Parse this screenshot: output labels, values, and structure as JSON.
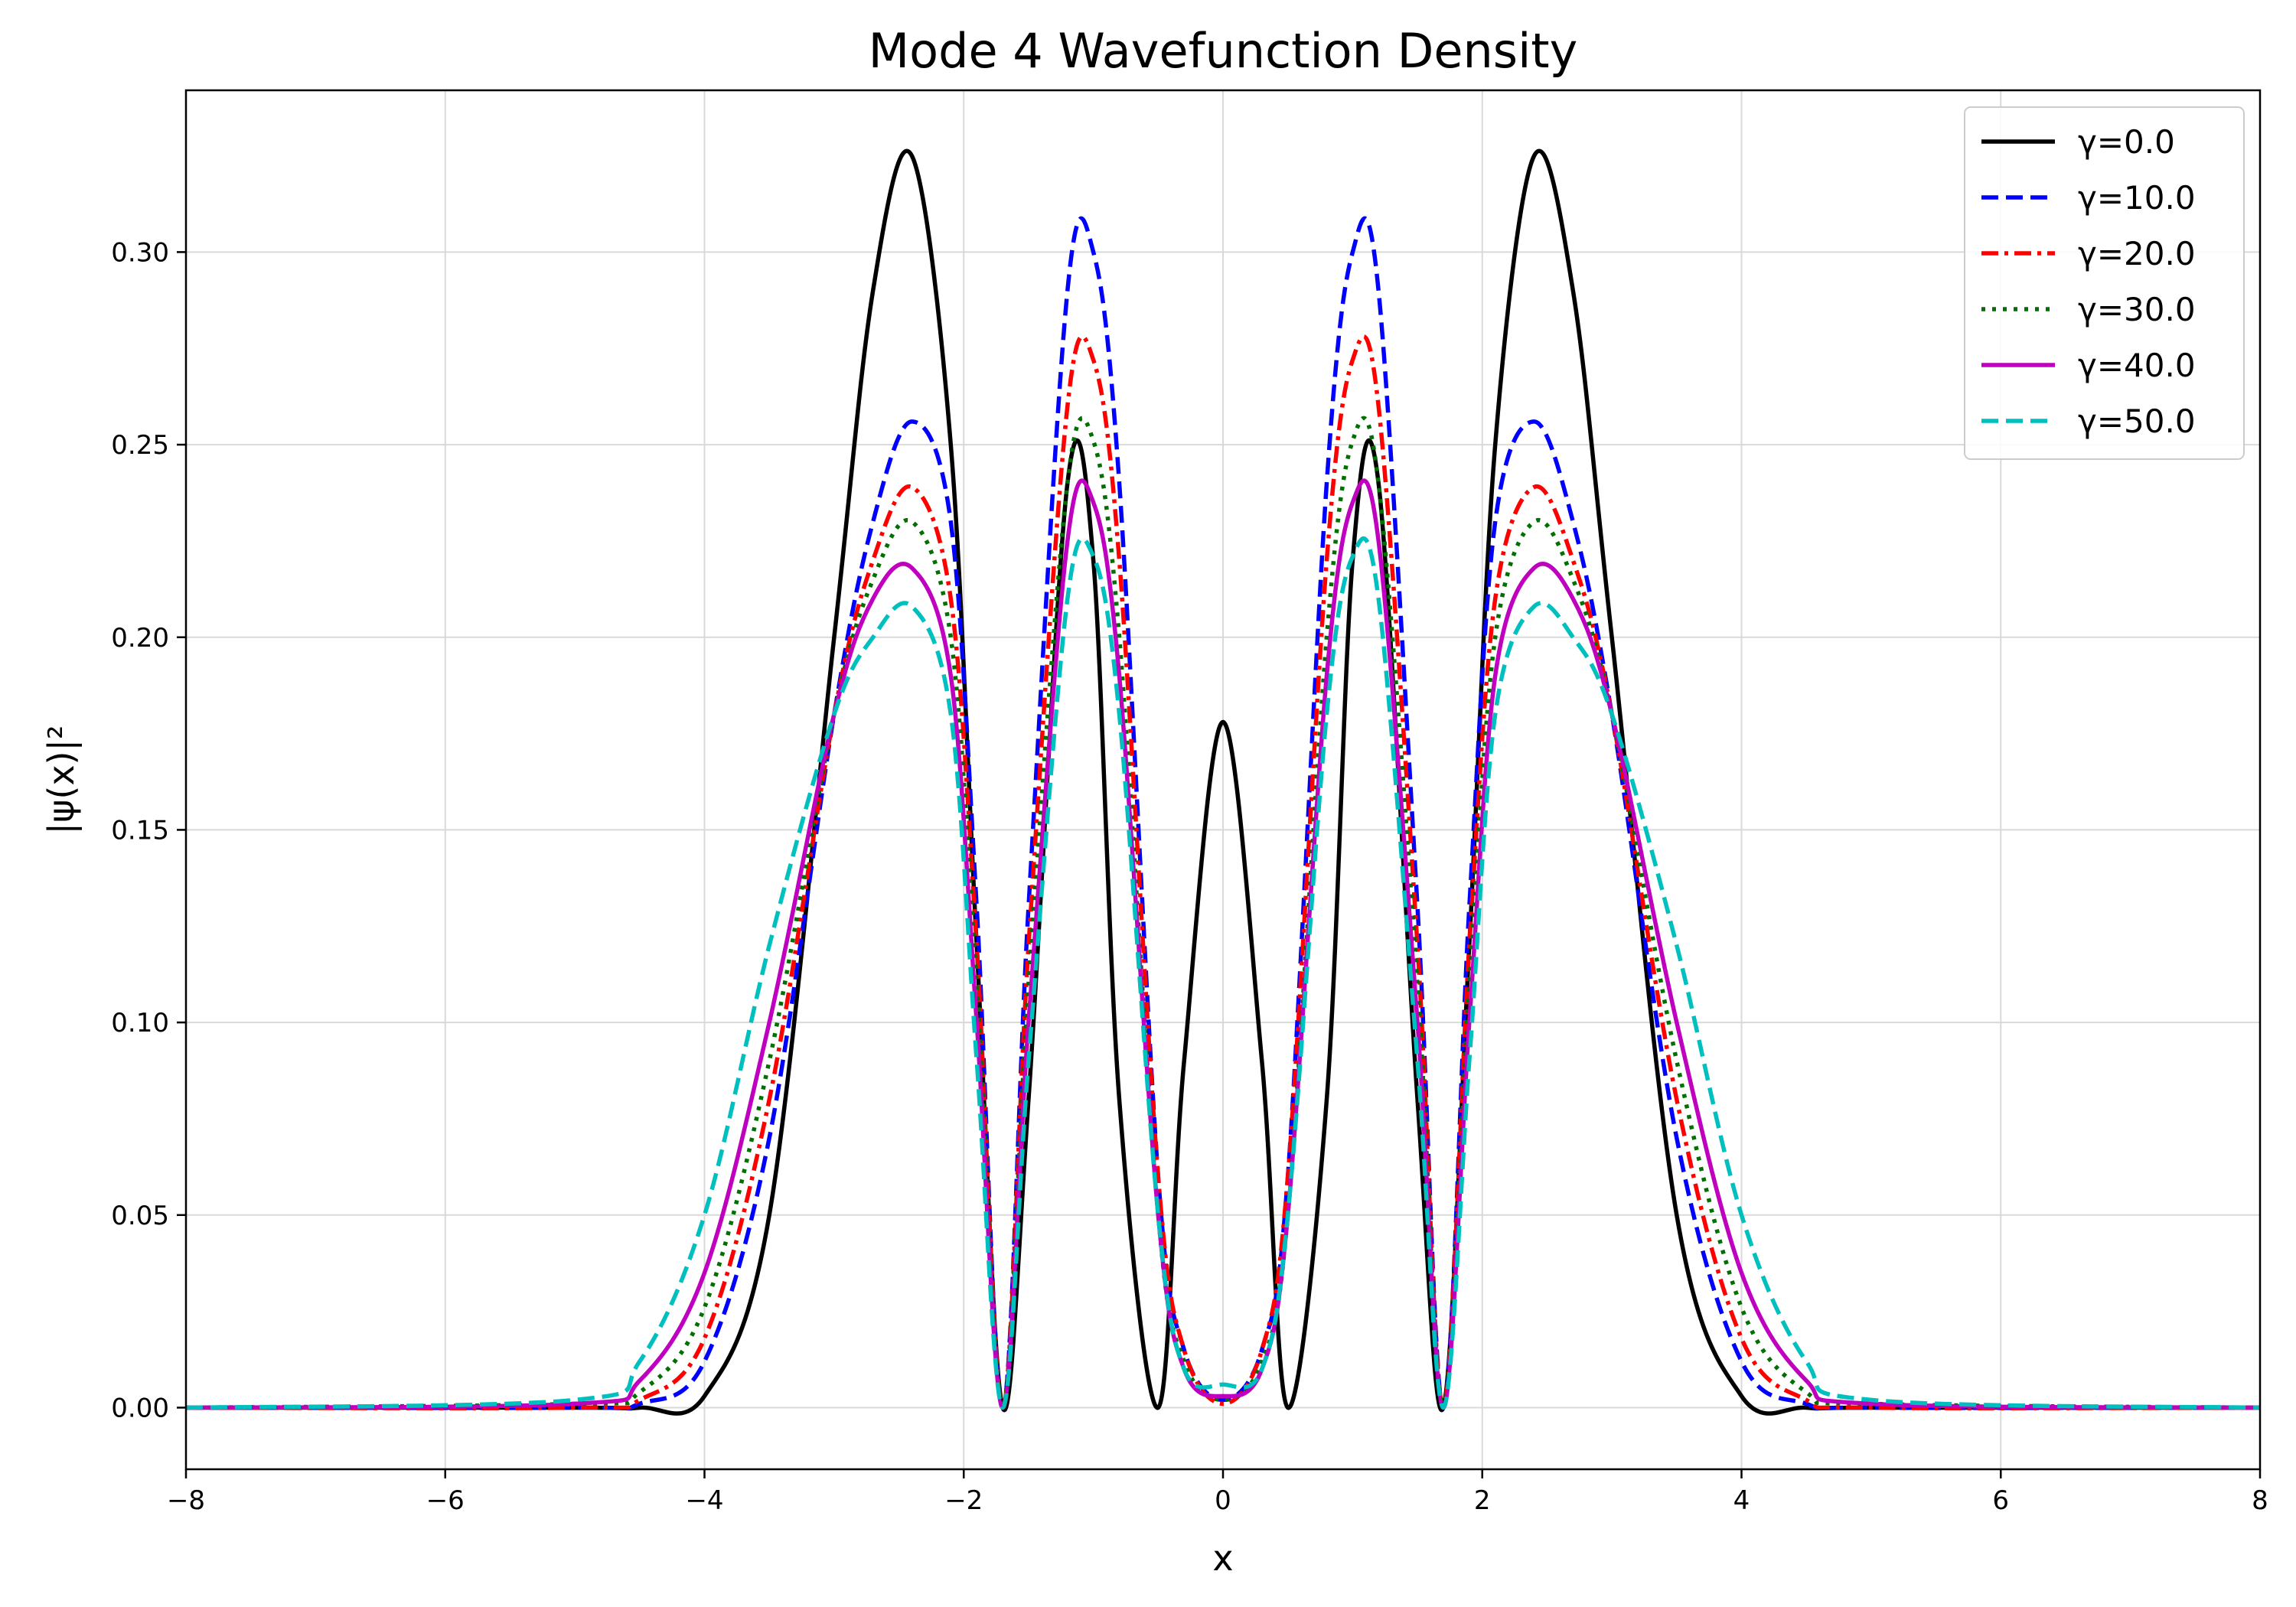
{
  "chart_data": {
    "type": "line",
    "title": "Mode 4 Wavefunction Density",
    "xlabel": "x",
    "ylabel": "|ψ(x)|²",
    "xlim": [
      -8,
      8
    ],
    "ylim": [
      -0.016,
      0.342
    ],
    "xticks": [
      -8,
      -6,
      -4,
      -2,
      0,
      2,
      4,
      6,
      8
    ],
    "xtick_labels": [
      "−8",
      "−6",
      "−4",
      "−2",
      "0",
      "2",
      "4",
      "6",
      "8"
    ],
    "yticks": [
      0.0,
      0.05,
      0.1,
      0.15,
      0.2,
      0.25,
      0.3
    ],
    "ytick_labels": [
      "0.00",
      "0.05",
      "0.10",
      "0.15",
      "0.20",
      "0.25",
      "0.30"
    ],
    "grid": true,
    "legend_position": "top-right",
    "x": [
      -8,
      -5,
      -4.5,
      -4,
      -3.5,
      -3,
      -2.7,
      -2.4,
      -2.1,
      -1.9,
      -1.7,
      -1.5,
      -1.2,
      -1.0,
      -0.8,
      -0.5,
      -0.3,
      0,
      0.3,
      0.5,
      0.8,
      1.0,
      1.2,
      1.5,
      1.7,
      1.9,
      2.1,
      2.4,
      2.7,
      3,
      3.5,
      4,
      4.5,
      5,
      8
    ],
    "series": [
      {
        "name": "γ=0.0",
        "color": "#000000",
        "dash": "solid",
        "values": [
          0,
          0,
          0,
          0.003,
          0.05,
          0.2,
          0.29,
          0.325,
          0.25,
          0.12,
          0.0,
          0.08,
          0.24,
          0.22,
          0.08,
          0.0,
          0.09,
          0.178,
          0.09,
          0.0,
          0.08,
          0.22,
          0.24,
          0.08,
          0.0,
          0.12,
          0.25,
          0.325,
          0.29,
          0.2,
          0.05,
          0.003,
          0,
          0,
          0
        ]
      },
      {
        "name": "γ=10.0",
        "color": "#0000ff",
        "dash": "dashed",
        "values": [
          0,
          0,
          0.001,
          0.012,
          0.07,
          0.18,
          0.23,
          0.256,
          0.23,
          0.13,
          0.0,
          0.13,
          0.29,
          0.3,
          0.24,
          0.06,
          0.015,
          0.002,
          0.015,
          0.06,
          0.24,
          0.3,
          0.29,
          0.13,
          0.0,
          0.13,
          0.23,
          0.256,
          0.23,
          0.18,
          0.07,
          0.012,
          0.001,
          0,
          0
        ]
      },
      {
        "name": "γ=20.0",
        "color": "#ff0000",
        "dash": "dashdot",
        "values": [
          0,
          0,
          0.002,
          0.018,
          0.08,
          0.18,
          0.22,
          0.239,
          0.21,
          0.12,
          0.0,
          0.12,
          0.26,
          0.272,
          0.22,
          0.06,
          0.015,
          0.001,
          0.015,
          0.06,
          0.22,
          0.272,
          0.26,
          0.12,
          0.0,
          0.12,
          0.21,
          0.239,
          0.22,
          0.18,
          0.08,
          0.018,
          0.002,
          0,
          0
        ]
      },
      {
        "name": "γ=30.0",
        "color": "#007000",
        "dash": "dotted",
        "values": [
          0,
          0.001,
          0.004,
          0.026,
          0.09,
          0.18,
          0.215,
          0.23,
          0.2,
          0.11,
          0.0,
          0.11,
          0.24,
          0.251,
          0.2,
          0.05,
          0.012,
          0.002,
          0.012,
          0.05,
          0.2,
          0.251,
          0.24,
          0.11,
          0.0,
          0.11,
          0.2,
          0.23,
          0.215,
          0.18,
          0.09,
          0.026,
          0.004,
          0.001,
          0
        ]
      },
      {
        "name": "γ=40.0",
        "color": "#bf00bf",
        "dash": "solid",
        "values": [
          0,
          0.001,
          0.007,
          0.035,
          0.1,
          0.18,
          0.21,
          0.218,
          0.19,
          0.1,
          0.0,
          0.1,
          0.225,
          0.235,
          0.19,
          0.05,
          0.01,
          0.003,
          0.01,
          0.05,
          0.19,
          0.235,
          0.225,
          0.1,
          0.0,
          0.1,
          0.19,
          0.218,
          0.21,
          0.18,
          0.1,
          0.035,
          0.007,
          0.001,
          0
        ]
      },
      {
        "name": "γ=50.0",
        "color": "#00bfbf",
        "dash": "dashed",
        "values": [
          0,
          0.002,
          0.012,
          0.05,
          0.12,
          0.18,
          0.2,
          0.208,
          0.18,
          0.09,
          0.0,
          0.09,
          0.21,
          0.221,
          0.18,
          0.05,
          0.01,
          0.006,
          0.01,
          0.05,
          0.18,
          0.221,
          0.21,
          0.09,
          0.0,
          0.09,
          0.18,
          0.208,
          0.2,
          0.18,
          0.12,
          0.05,
          0.012,
          0.002,
          0
        ]
      }
    ]
  }
}
